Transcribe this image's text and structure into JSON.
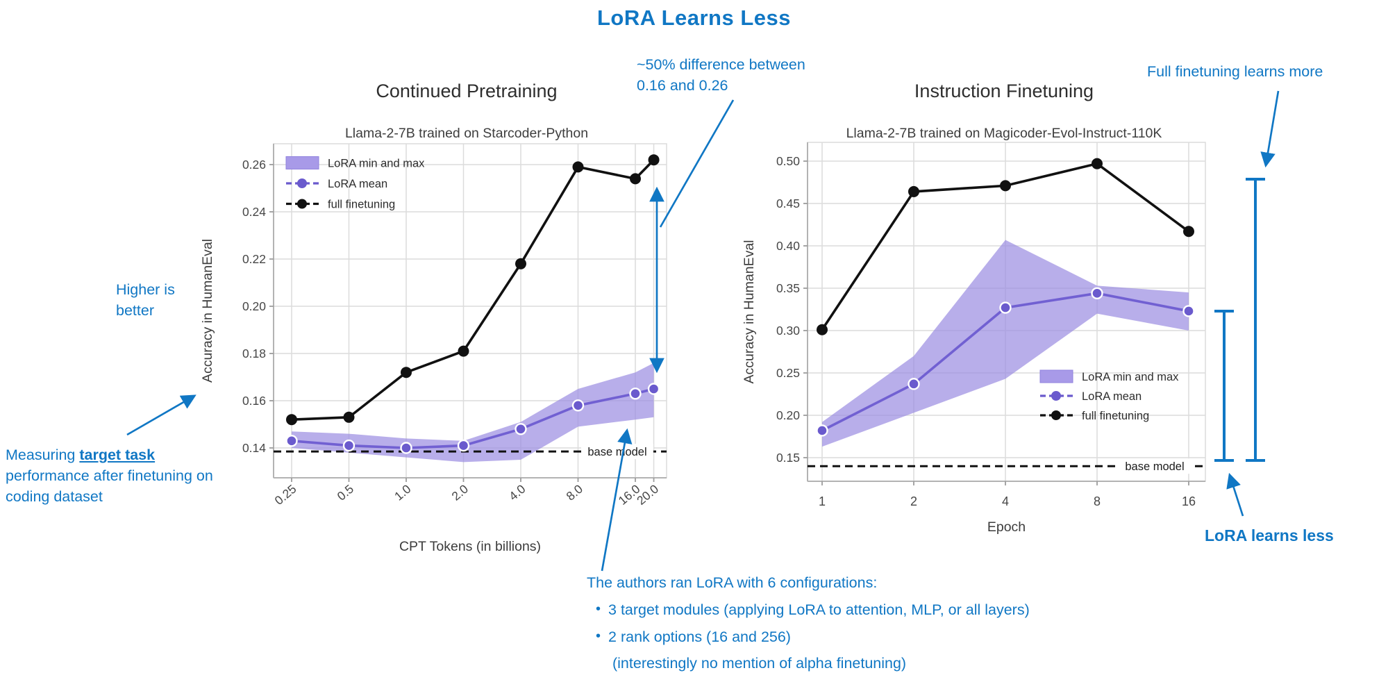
{
  "page_title": "LoRA Learns Less",
  "colors": {
    "annotation_blue": "#1077c4",
    "lora_purple": "#6a5acd",
    "band_purple": "#9c8fe2",
    "full_finetuning_black": "#111111"
  },
  "annotations": {
    "diff_50pct": {
      "lines": [
        "~50% difference between",
        "0.16 and 0.26"
      ]
    },
    "full_ft_learns_more": "Full finetuning learns more",
    "higher_is_better": {
      "lines": [
        "Higher is",
        "better"
      ]
    },
    "measuring": {
      "prefix": "Measuring ",
      "highlight": "target task",
      "rest": " performance after finetuning on coding dataset"
    },
    "configs": {
      "header": "The authors ran LoRA with 6 configurations:",
      "bullets": [
        "3 target modules (applying LoRA to attention, MLP, or all layers)",
        "2 rank options (16 and 256)"
      ],
      "note": "(interestingly no mention of alpha finetuning)"
    },
    "lora_learns_less": "LoRA learns less"
  },
  "chart_data": [
    {
      "type": "line",
      "title": "Continued Pretraining",
      "subtitle": "Llama-2-7B trained on Starcoder-Python",
      "xlabel": "CPT Tokens (in billions)",
      "ylabel": "Accuracy in HumanEval",
      "x_scale": "log2",
      "x": [
        0.25,
        0.5,
        1.0,
        2.0,
        4.0,
        8.0,
        16.0,
        20.0
      ],
      "xtick_labels": [
        "0.25",
        "0.5",
        "1.0",
        "2.0",
        "4.0",
        "8.0",
        "16.0",
        "20.0"
      ],
      "yticks": [
        0.14,
        0.16,
        0.18,
        0.2,
        0.22,
        0.24,
        0.26
      ],
      "ylim": [
        0.128,
        0.268
      ],
      "grid": true,
      "legend_position": "upper-left",
      "series": [
        {
          "name": "LoRA min and max",
          "type": "band",
          "min": [
            0.14,
            0.138,
            0.136,
            0.134,
            0.135,
            0.149,
            0.152,
            0.153
          ],
          "max": [
            0.147,
            0.146,
            0.144,
            0.143,
            0.151,
            0.165,
            0.172,
            0.176
          ]
        },
        {
          "name": "LoRA mean",
          "type": "line",
          "values": [
            0.143,
            0.141,
            0.14,
            0.141,
            0.148,
            0.158,
            0.163,
            0.165
          ]
        },
        {
          "name": "full finetuning",
          "type": "line",
          "values": [
            0.152,
            0.153,
            0.172,
            0.181,
            0.218,
            0.259,
            0.254,
            0.262
          ]
        }
      ],
      "baseline": {
        "label": "base model",
        "value": 0.1385
      }
    },
    {
      "type": "line",
      "title": "Instruction Finetuning",
      "subtitle": "Llama-2-7B trained on Magicoder-Evol-Instruct-110K",
      "xlabel": "Epoch",
      "ylabel": "Accuracy in HumanEval",
      "x_scale": "log2",
      "x": [
        1,
        2,
        4,
        8,
        16
      ],
      "xtick_labels": [
        "1",
        "2",
        "4",
        "8",
        "16"
      ],
      "yticks": [
        0.15,
        0.2,
        0.25,
        0.3,
        0.35,
        0.4,
        0.45,
        0.5
      ],
      "ylim": [
        0.125,
        0.522
      ],
      "grid": true,
      "legend_position": "center-right",
      "series": [
        {
          "name": "LoRA min and max",
          "type": "band",
          "min": [
            0.163,
            0.203,
            0.243,
            0.32,
            0.3
          ],
          "max": [
            0.192,
            0.27,
            0.407,
            0.353,
            0.345
          ]
        },
        {
          "name": "LoRA mean",
          "type": "line",
          "values": [
            0.182,
            0.237,
            0.327,
            0.344,
            0.323
          ]
        },
        {
          "name": "full finetuning",
          "type": "line",
          "values": [
            0.301,
            0.464,
            0.471,
            0.497,
            0.417
          ]
        }
      ],
      "baseline": {
        "label": "base model",
        "value": 0.14
      }
    }
  ]
}
